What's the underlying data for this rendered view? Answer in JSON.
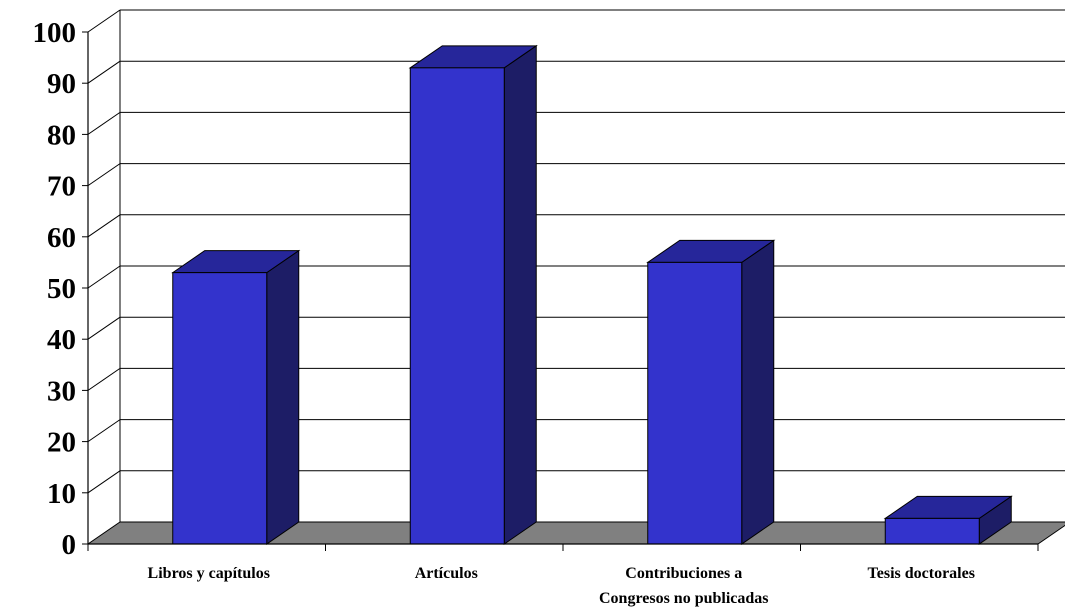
{
  "chart_data": {
    "type": "bar",
    "style": "3d-column",
    "categories": [
      [
        "Libros y capítulos"
      ],
      [
        "Artículos"
      ],
      [
        "Contribuciones a",
        "Congresos no publicadas"
      ],
      [
        "Tesis doctorales"
      ]
    ],
    "values": [
      53,
      93,
      55,
      5
    ],
    "ylim": [
      0,
      100
    ],
    "yticks": [
      "0",
      "10",
      "20",
      "30",
      "40",
      "50",
      "60",
      "70",
      "80",
      "90",
      "100"
    ],
    "grid": true,
    "legend": "none",
    "colors": {
      "bar_front": "#3333cc",
      "bar_side": "#1d1d66",
      "bar_top": "#26269a",
      "floor": "#808080",
      "grid": "#000000"
    }
  }
}
